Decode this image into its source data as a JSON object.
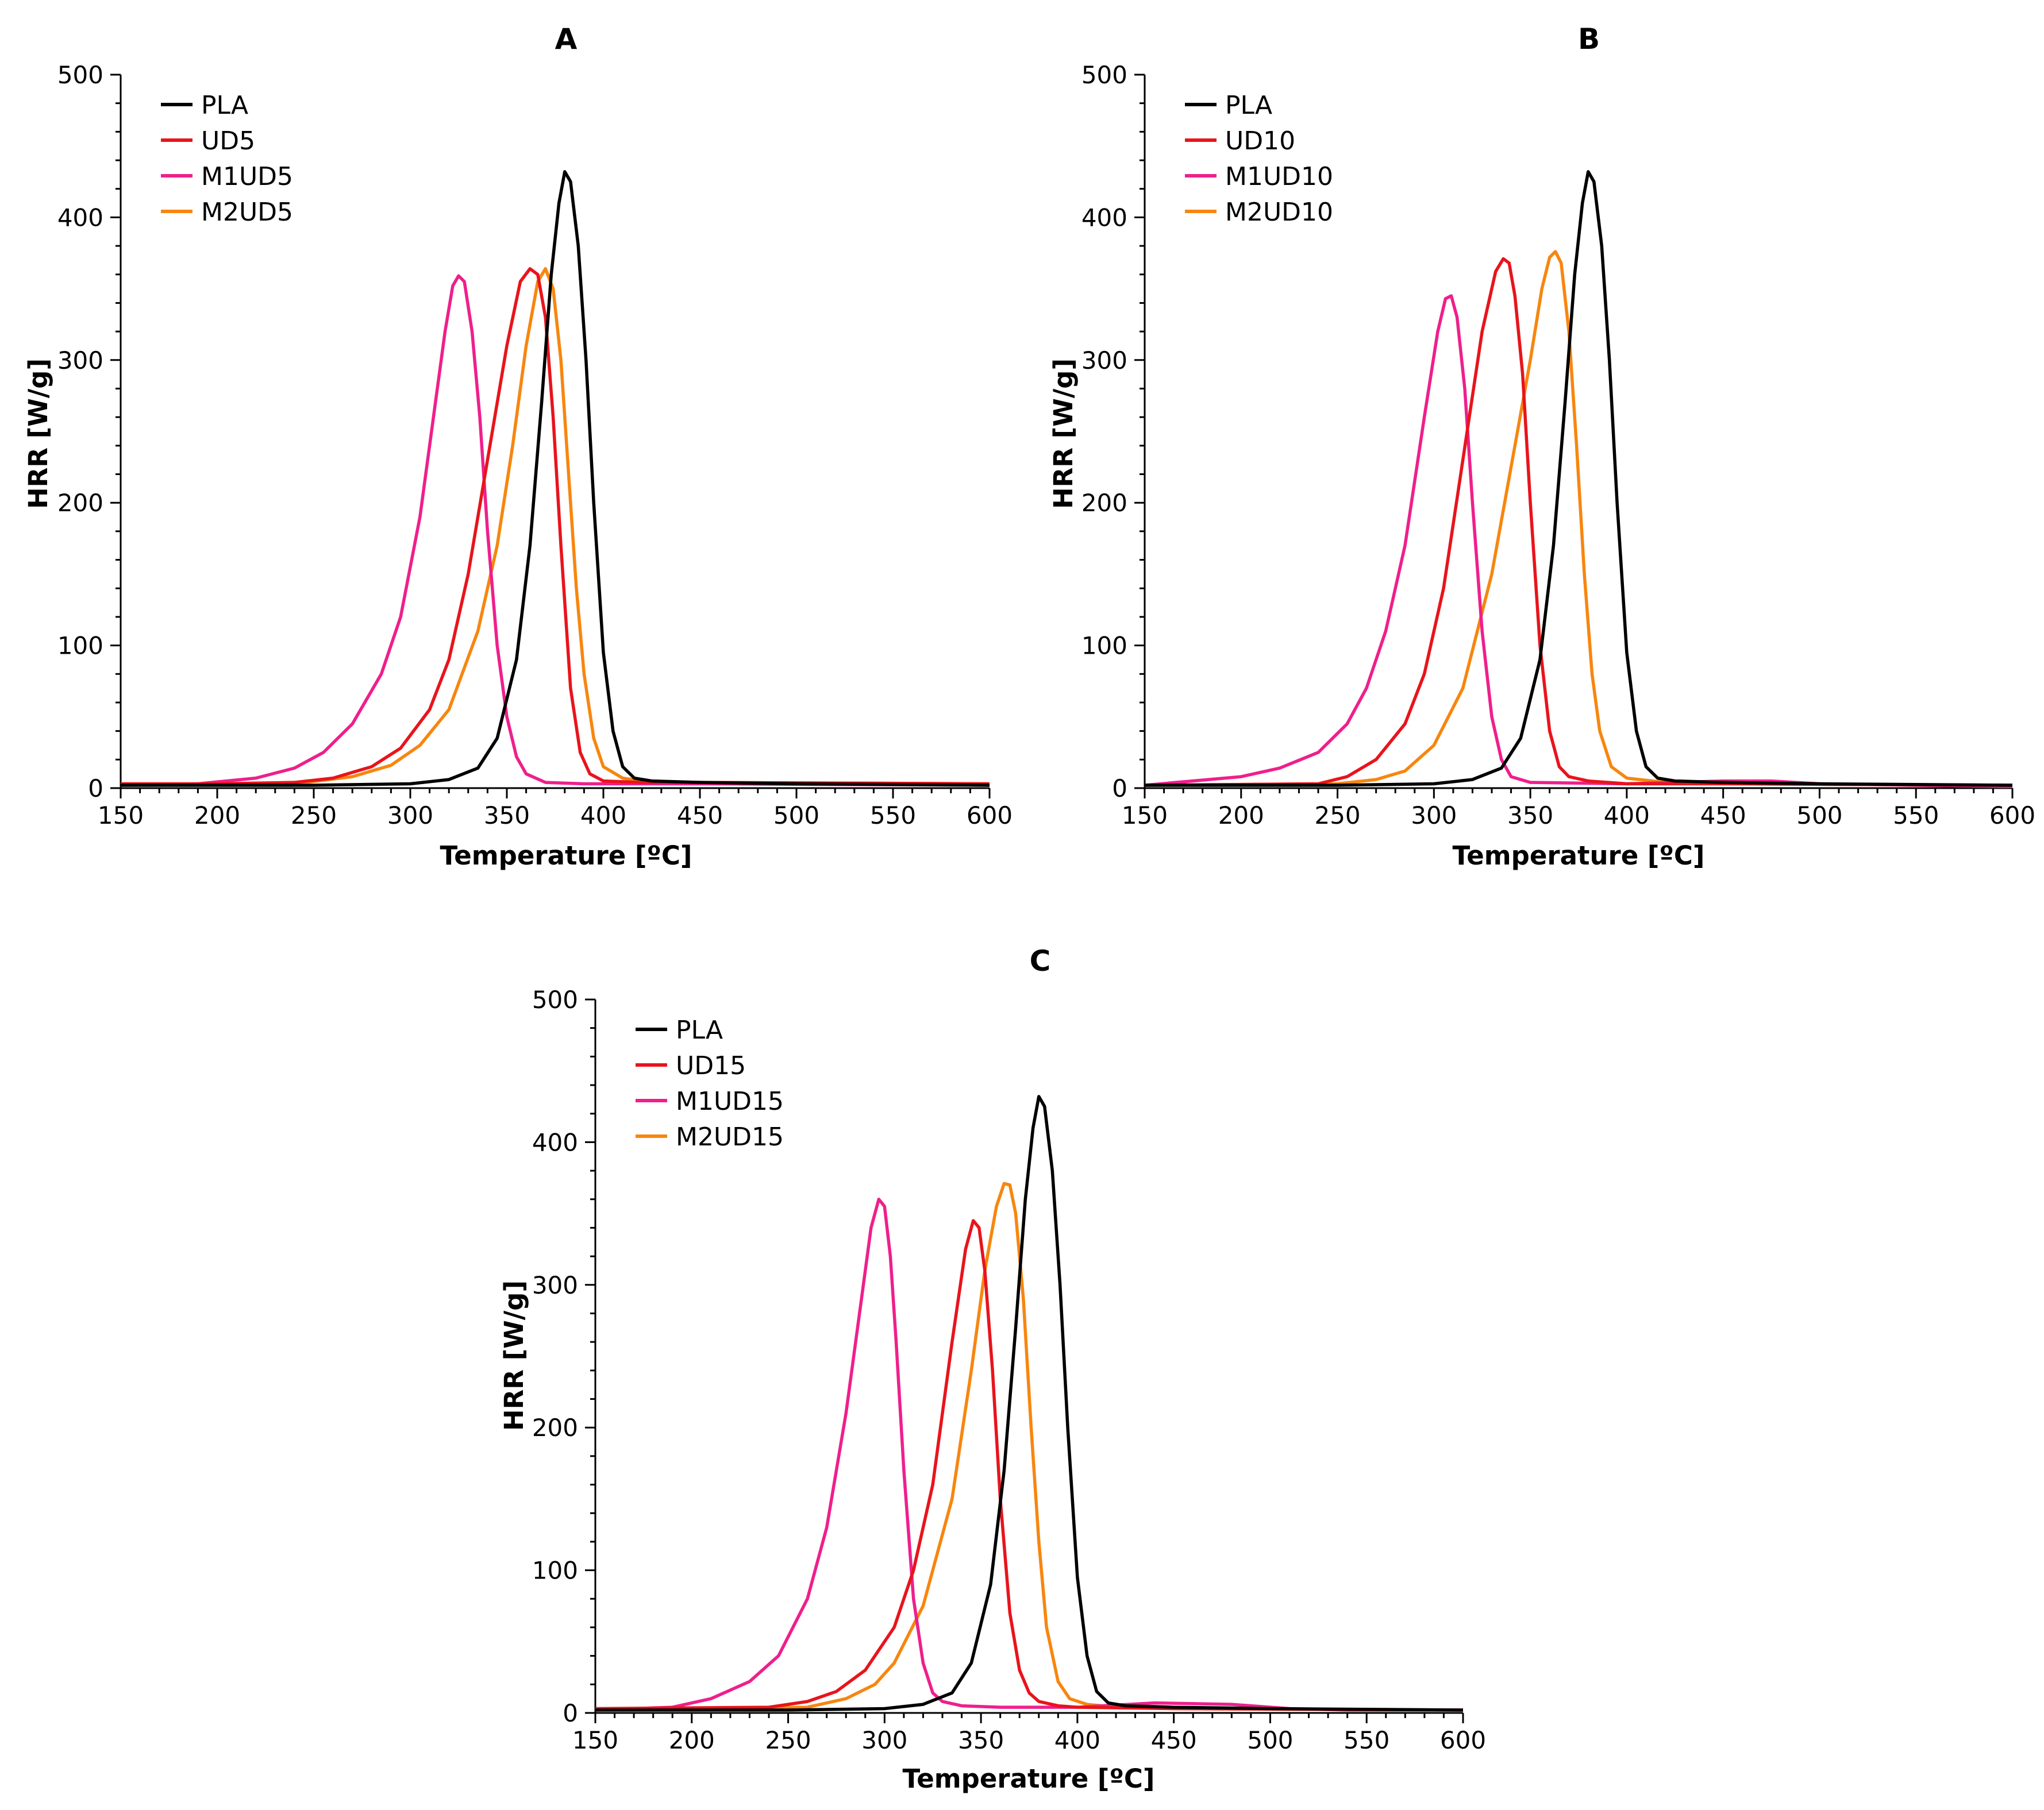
{
  "colors": {
    "PLA": "#000000",
    "UD": "#e8141c",
    "M1UD": "#ef1f8c",
    "M2UD": "#f7860f"
  },
  "chart_data": [
    {
      "type": "line",
      "title": "A",
      "xlabel": "Temperature [ºC]",
      "ylabel": "HRR [W/g]",
      "xlim": [
        150,
        600
      ],
      "ylim": [
        0,
        500
      ],
      "xticks": [
        150,
        200,
        250,
        300,
        350,
        400,
        450,
        500,
        550,
        600
      ],
      "yticks": [
        0,
        100,
        200,
        300,
        400,
        500
      ],
      "legend_position": "top-left",
      "series": [
        {
          "name": "PLA",
          "color_key": "PLA",
          "x": [
            150,
            250,
            300,
            320,
            335,
            345,
            355,
            362,
            368,
            373,
            377,
            380,
            383,
            387,
            391,
            395,
            400,
            405,
            410,
            416,
            425,
            450,
            500,
            600
          ],
          "y": [
            2,
            2,
            3,
            6,
            14,
            35,
            90,
            170,
            270,
            360,
            410,
            432,
            425,
            380,
            300,
            200,
            95,
            40,
            15,
            7,
            5,
            4,
            3,
            2
          ]
        },
        {
          "name": "UD5",
          "color_key": "UD",
          "x": [
            150,
            200,
            240,
            260,
            280,
            295,
            310,
            320,
            330,
            340,
            350,
            357,
            362,
            366,
            370,
            374,
            378,
            383,
            388,
            393,
            400,
            420,
            450,
            600
          ],
          "y": [
            3,
            3,
            4,
            7,
            15,
            28,
            55,
            90,
            150,
            230,
            310,
            355,
            364,
            360,
            330,
            260,
            170,
            70,
            25,
            10,
            5,
            4,
            4,
            3
          ]
        },
        {
          "name": "M1UD5",
          "color_key": "M1UD",
          "x": [
            150,
            190,
            220,
            240,
            255,
            270,
            285,
            295,
            305,
            312,
            318,
            322,
            325,
            328,
            332,
            336,
            340,
            345,
            350,
            355,
            360,
            370,
            390,
            450,
            600
          ],
          "y": [
            2,
            3,
            7,
            14,
            25,
            45,
            80,
            120,
            190,
            260,
            320,
            352,
            359,
            355,
            320,
            260,
            180,
            100,
            50,
            22,
            10,
            4,
            3,
            3,
            2
          ]
        },
        {
          "name": "M2UD5",
          "color_key": "M2UD",
          "x": [
            150,
            240,
            270,
            290,
            305,
            320,
            335,
            345,
            353,
            360,
            366,
            370,
            374,
            378,
            382,
            386,
            390,
            395,
            400,
            410,
            420,
            450,
            600
          ],
          "y": [
            2,
            3,
            8,
            16,
            30,
            55,
            110,
            170,
            240,
            310,
            355,
            364,
            350,
            300,
            220,
            140,
            80,
            35,
            15,
            7,
            5,
            4,
            3
          ]
        }
      ]
    },
    {
      "type": "line",
      "title": "B",
      "xlabel": "Temperature [ºC]",
      "ylabel": "HRR [W/g]",
      "xlim": [
        150,
        600
      ],
      "ylim": [
        0,
        500
      ],
      "xticks": [
        150,
        200,
        250,
        300,
        350,
        400,
        450,
        500,
        550,
        600
      ],
      "yticks": [
        0,
        100,
        200,
        300,
        400,
        500
      ],
      "legend_position": "top-left",
      "series": [
        {
          "name": "PLA",
          "color_key": "PLA",
          "x": [
            150,
            250,
            300,
            320,
            335,
            345,
            355,
            362,
            368,
            373,
            377,
            380,
            383,
            387,
            391,
            395,
            400,
            405,
            410,
            416,
            425,
            450,
            500,
            600
          ],
          "y": [
            2,
            2,
            3,
            6,
            14,
            35,
            90,
            170,
            270,
            360,
            410,
            432,
            425,
            380,
            300,
            200,
            95,
            40,
            15,
            7,
            5,
            4,
            3,
            2
          ]
        },
        {
          "name": "UD10",
          "color_key": "UD",
          "x": [
            150,
            240,
            255,
            270,
            285,
            295,
            305,
            315,
            325,
            332,
            336,
            339,
            342,
            346,
            350,
            355,
            360,
            365,
            370,
            380,
            400,
            450,
            600
          ],
          "y": [
            2,
            3,
            8,
            20,
            45,
            80,
            140,
            230,
            320,
            362,
            371,
            368,
            345,
            290,
            200,
            100,
            40,
            15,
            8,
            5,
            3,
            3,
            2
          ]
        },
        {
          "name": "M1UD10",
          "color_key": "M1UD",
          "x": [
            150,
            200,
            220,
            240,
            255,
            265,
            275,
            285,
            295,
            302,
            306,
            309,
            312,
            316,
            320,
            325,
            330,
            335,
            340,
            350,
            400,
            450,
            475,
            500,
            550,
            600
          ],
          "y": [
            2,
            8,
            14,
            25,
            45,
            70,
            110,
            170,
            260,
            320,
            343,
            345,
            330,
            280,
            200,
            110,
            50,
            20,
            8,
            4,
            3,
            5,
            5,
            3,
            2,
            1
          ]
        },
        {
          "name": "M2UD10",
          "color_key": "M2UD",
          "x": [
            150,
            250,
            270,
            285,
            300,
            315,
            330,
            342,
            350,
            356,
            360,
            363,
            366,
            370,
            374,
            378,
            382,
            386,
            392,
            400,
            420,
            450,
            600
          ],
          "y": [
            2,
            3,
            6,
            12,
            30,
            70,
            150,
            240,
            300,
            350,
            372,
            376,
            368,
            320,
            240,
            150,
            80,
            40,
            15,
            7,
            4,
            3,
            2
          ]
        }
      ]
    },
    {
      "type": "line",
      "title": "C",
      "xlabel": "Temperature [ºC]",
      "ylabel": "HRR [W/g]",
      "xlim": [
        150,
        600
      ],
      "ylim": [
        0,
        500
      ],
      "xticks": [
        150,
        200,
        250,
        300,
        350,
        400,
        450,
        500,
        550,
        600
      ],
      "yticks": [
        0,
        100,
        200,
        300,
        400,
        500
      ],
      "legend_position": "top-left",
      "series": [
        {
          "name": "PLA",
          "color_key": "PLA",
          "x": [
            150,
            250,
            300,
            320,
            335,
            345,
            355,
            362,
            368,
            373,
            377,
            380,
            383,
            387,
            391,
            395,
            400,
            405,
            410,
            416,
            425,
            450,
            500,
            600
          ],
          "y": [
            2,
            2,
            3,
            6,
            14,
            35,
            90,
            170,
            270,
            360,
            410,
            432,
            425,
            380,
            300,
            200,
            95,
            40,
            15,
            7,
            5,
            4,
            3,
            2
          ]
        },
        {
          "name": "UD15",
          "color_key": "UD",
          "x": [
            150,
            240,
            260,
            275,
            290,
            305,
            315,
            325,
            335,
            342,
            346,
            349,
            352,
            356,
            360,
            365,
            370,
            375,
            380,
            390,
            400,
            450,
            600
          ],
          "y": [
            3,
            4,
            8,
            15,
            30,
            60,
            100,
            160,
            260,
            325,
            345,
            340,
            310,
            240,
            150,
            70,
            30,
            14,
            8,
            5,
            4,
            3,
            2
          ]
        },
        {
          "name": "M1UD15",
          "color_key": "M1UD",
          "x": [
            150,
            190,
            210,
            230,
            245,
            260,
            270,
            280,
            288,
            293,
            297,
            300,
            303,
            306,
            310,
            315,
            320,
            325,
            330,
            340,
            360,
            400,
            440,
            480,
            510,
            540,
            600
          ],
          "y": [
            2,
            4,
            10,
            22,
            40,
            80,
            130,
            210,
            290,
            340,
            360,
            355,
            320,
            260,
            170,
            80,
            35,
            14,
            8,
            5,
            4,
            4,
            7,
            6,
            3,
            2,
            2
          ]
        },
        {
          "name": "M2UD15",
          "color_key": "M2UD",
          "x": [
            150,
            260,
            280,
            295,
            305,
            320,
            335,
            345,
            352,
            358,
            362,
            365,
            368,
            372,
            376,
            380,
            384,
            390,
            396,
            405,
            420,
            450,
            600
          ],
          "y": [
            2,
            4,
            10,
            20,
            35,
            75,
            150,
            240,
            310,
            355,
            371,
            370,
            350,
            290,
            200,
            120,
            60,
            22,
            10,
            6,
            4,
            3,
            2
          ]
        }
      ]
    }
  ]
}
